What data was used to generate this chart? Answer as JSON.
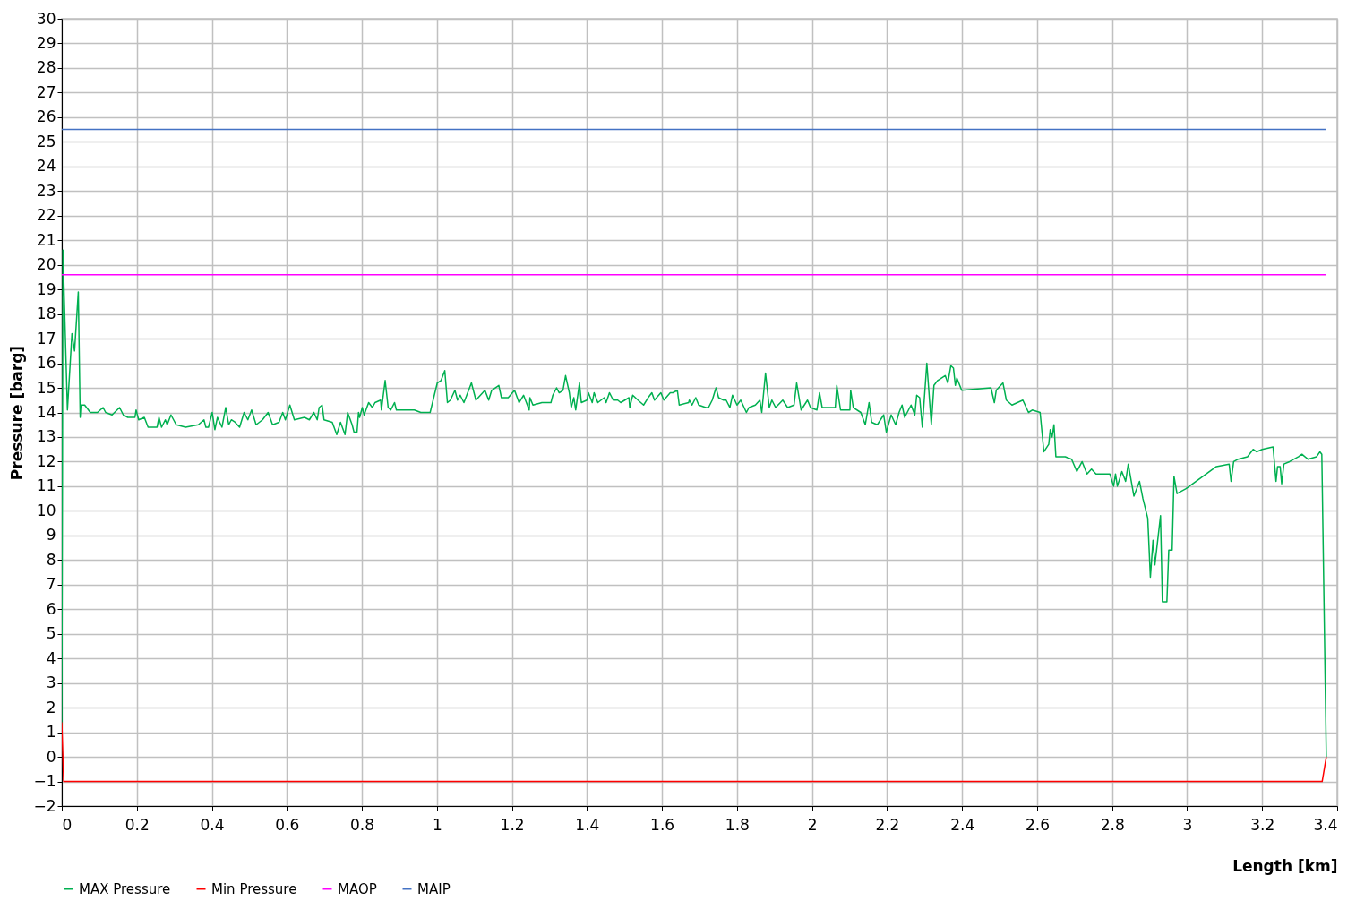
{
  "chart_data": {
    "type": "line",
    "xlabel": "Length [km]",
    "ylabel": "Pressure [barg]",
    "xlim": [
      0,
      3.4
    ],
    "xticks": [
      0,
      0.2,
      0.4,
      0.6,
      0.8,
      1,
      1.2,
      1.4,
      1.6,
      1.8,
      2,
      2.2,
      2.4,
      2.6,
      2.8,
      3,
      3.2,
      3.4
    ],
    "ylim": [
      -2,
      30
    ],
    "yticks": [
      -2,
      -1,
      0,
      1,
      2,
      3,
      4,
      5,
      6,
      7,
      8,
      9,
      10,
      11,
      12,
      13,
      14,
      15,
      16,
      17,
      18,
      19,
      20,
      21,
      22,
      23,
      24,
      25,
      26,
      27,
      28,
      29,
      30
    ],
    "grid": true,
    "legend": "bottom",
    "line_style": "solid",
    "marker": "none",
    "series": [
      {
        "name": "MAX Pressure",
        "color": "#00b050",
        "x": [
          0,
          0.003,
          0.015,
          0.027,
          0.034,
          0.044,
          0.049,
          0.051,
          0.061,
          0.076,
          0.095,
          0.11,
          0.117,
          0.134,
          0.154,
          0.164,
          0.176,
          0.195,
          0.198,
          0.205,
          0.22,
          0.23,
          0.242,
          0.254,
          0.259,
          0.266,
          0.276,
          0.281,
          0.291,
          0.305,
          0.33,
          0.364,
          0.379,
          0.384,
          0.391,
          0.401,
          0.408,
          0.415,
          0.427,
          0.437,
          0.445,
          0.452,
          0.462,
          0.474,
          0.486,
          0.496,
          0.506,
          0.518,
          0.535,
          0.55,
          0.562,
          0.579,
          0.589,
          0.596,
          0.608,
          0.62,
          0.647,
          0.66,
          0.672,
          0.681,
          0.686,
          0.694,
          0.699,
          0.721,
          0.733,
          0.743,
          0.755,
          0.762,
          0.774,
          0.779,
          0.787,
          0.791,
          0.794,
          0.801,
          0.806,
          0.818,
          0.828,
          0.835,
          0.85,
          0.852,
          0.862,
          0.87,
          0.877,
          0.887,
          0.892,
          0.914,
          0.94,
          0.957,
          0.982,
          1.001,
          1.011,
          1.021,
          1.028,
          1.036,
          1.048,
          1.055,
          1.062,
          1.072,
          1.092,
          1.104,
          1.128,
          1.138,
          1.146,
          1.165,
          1.172,
          1.19,
          1.207,
          1.219,
          1.231,
          1.246,
          1.248,
          1.256,
          1.28,
          1.304,
          1.309,
          1.319,
          1.326,
          1.336,
          1.343,
          1.353,
          1.358,
          1.365,
          1.37,
          1.38,
          1.385,
          1.4,
          1.404,
          1.414,
          1.419,
          1.429,
          1.446,
          1.451,
          1.46,
          1.47,
          1.482,
          1.49,
          1.512,
          1.514,
          1.522,
          1.536,
          1.551,
          1.563,
          1.573,
          1.58,
          1.597,
          1.605,
          1.622,
          1.629,
          1.641,
          1.646,
          1.671,
          1.673,
          1.68,
          1.69,
          1.698,
          1.717,
          1.724,
          1.734,
          1.744,
          1.751,
          1.764,
          1.771,
          1.781,
          1.788,
          1.8,
          1.81,
          1.825,
          1.832,
          1.849,
          1.861,
          1.866,
          1.876,
          1.886,
          1.893,
          1.903,
          1.922,
          1.935,
          1.952,
          1.959,
          1.971,
          1.988,
          1.996,
          2.013,
          2.02,
          2.027,
          2.062,
          2.066,
          2.076,
          2.101,
          2.103,
          2.11,
          2.13,
          2.142,
          2.152,
          2.159,
          2.174,
          2.191,
          2.198,
          2.211,
          2.223,
          2.232,
          2.24,
          2.247,
          2.264,
          2.274,
          2.279,
          2.287,
          2.294,
          2.306,
          2.318,
          2.325,
          2.335,
          2.355,
          2.362,
          2.37,
          2.377,
          2.382,
          2.386,
          2.399,
          2.477,
          2.486,
          2.491,
          2.509,
          2.518,
          2.533,
          2.562,
          2.577,
          2.587,
          2.608,
          2.618,
          2.631,
          2.635,
          2.64,
          2.645,
          2.65,
          2.675,
          2.692,
          2.706,
          2.72,
          2.733,
          2.745,
          2.757,
          2.794,
          2.804,
          2.809,
          2.814,
          2.826,
          2.836,
          2.843,
          2.858,
          2.873,
          2.882,
          2.895,
          2.902,
          2.909,
          2.914,
          2.929,
          2.934,
          2.946,
          2.951,
          2.96,
          2.965,
          2.973,
          2.997,
          3.078,
          3.112,
          3.117,
          3.124,
          3.136,
          3.161,
          3.176,
          3.185,
          3.2,
          3.229,
          3.237,
          3.241,
          3.248,
          3.252,
          3.258,
          3.273,
          3.297,
          3.306,
          3.322,
          3.345,
          3.354,
          3.359,
          3.371
        ],
        "values": [
          1.1,
          20.6,
          14.1,
          17.2,
          16.5,
          18.9,
          13.8,
          14.3,
          14.3,
          14.0,
          14.0,
          14.2,
          14.0,
          13.9,
          14.2,
          13.9,
          13.8,
          13.8,
          14.1,
          13.7,
          13.8,
          13.4,
          13.4,
          13.4,
          13.8,
          13.4,
          13.7,
          13.5,
          13.9,
          13.5,
          13.4,
          13.5,
          13.7,
          13.4,
          13.4,
          14.0,
          13.3,
          13.8,
          13.4,
          14.2,
          13.5,
          13.7,
          13.6,
          13.4,
          14.0,
          13.7,
          14.1,
          13.5,
          13.7,
          14.0,
          13.5,
          13.6,
          14.0,
          13.7,
          14.3,
          13.7,
          13.8,
          13.7,
          14.0,
          13.7,
          14.2,
          14.3,
          13.7,
          13.6,
          13.1,
          13.6,
          13.1,
          14.0,
          13.5,
          13.2,
          13.2,
          14.0,
          13.8,
          14.2,
          13.9,
          14.4,
          14.2,
          14.4,
          14.5,
          14.1,
          15.3,
          14.2,
          14.1,
          14.4,
          14.1,
          14.1,
          14.1,
          14.0,
          14.0,
          15.2,
          15.3,
          15.7,
          14.4,
          14.5,
          14.9,
          14.5,
          14.7,
          14.4,
          15.2,
          14.5,
          14.9,
          14.5,
          14.9,
          15.1,
          14.6,
          14.6,
          14.9,
          14.4,
          14.7,
          14.1,
          14.6,
          14.3,
          14.4,
          14.4,
          14.7,
          15.0,
          14.8,
          14.9,
          15.5,
          14.8,
          14.2,
          14.6,
          14.1,
          15.2,
          14.4,
          14.5,
          14.8,
          14.4,
          14.8,
          14.4,
          14.6,
          14.4,
          14.8,
          14.5,
          14.5,
          14.4,
          14.6,
          14.2,
          14.7,
          14.5,
          14.3,
          14.6,
          14.8,
          14.5,
          14.8,
          14.5,
          14.8,
          14.8,
          14.9,
          14.3,
          14.4,
          14.5,
          14.3,
          14.6,
          14.3,
          14.2,
          14.2,
          14.5,
          15.0,
          14.6,
          14.5,
          14.5,
          14.2,
          14.7,
          14.3,
          14.5,
          14.0,
          14.2,
          14.3,
          14.5,
          14.0,
          15.6,
          14.2,
          14.5,
          14.2,
          14.5,
          14.2,
          14.3,
          15.2,
          14.1,
          14.5,
          14.2,
          14.1,
          14.8,
          14.2,
          14.2,
          15.1,
          14.1,
          14.1,
          14.9,
          14.2,
          14.0,
          13.5,
          14.4,
          13.6,
          13.5,
          13.9,
          13.2,
          13.9,
          13.5,
          14.0,
          14.3,
          13.8,
          14.3,
          13.9,
          14.7,
          14.6,
          13.4,
          16.0,
          13.5,
          15.1,
          15.3,
          15.5,
          15.2,
          15.9,
          15.8,
          15.1,
          15.4,
          14.9,
          15.0,
          14.4,
          14.9,
          15.2,
          14.5,
          14.3,
          14.5,
          14.0,
          14.1,
          14.0,
          12.4,
          12.7,
          13.3,
          13.0,
          13.5,
          12.2,
          12.2,
          12.1,
          11.6,
          12.0,
          11.5,
          11.7,
          11.5,
          11.5,
          11.0,
          11.5,
          11.0,
          11.6,
          11.2,
          11.9,
          10.6,
          11.2,
          10.5,
          9.7,
          7.3,
          8.8,
          7.8,
          9.8,
          6.3,
          6.3,
          8.4,
          8.4,
          11.4,
          10.7,
          10.9,
          11.8,
          11.9,
          11.2,
          12.0,
          12.1,
          12.2,
          12.5,
          12.4,
          12.5,
          12.6,
          11.2,
          11.8,
          11.8,
          11.1,
          11.9,
          12.0,
          12.2,
          12.3,
          12.1,
          12.2,
          12.4,
          12.3,
          0
        ]
      },
      {
        "name": "Min Pressure",
        "color": "#ff0000",
        "x": [
          0,
          0.005,
          3.36,
          3.371
        ],
        "values": [
          1.4,
          -1,
          -1,
          0
        ]
      },
      {
        "name": "MAOP",
        "color": "#ff00ff",
        "x": [
          0,
          3.37
        ],
        "values": [
          19.6,
          19.6
        ]
      },
      {
        "name": "MAIP",
        "color": "#4472c4",
        "x": [
          0,
          3.37
        ],
        "values": [
          25.5,
          25.5
        ]
      }
    ]
  }
}
